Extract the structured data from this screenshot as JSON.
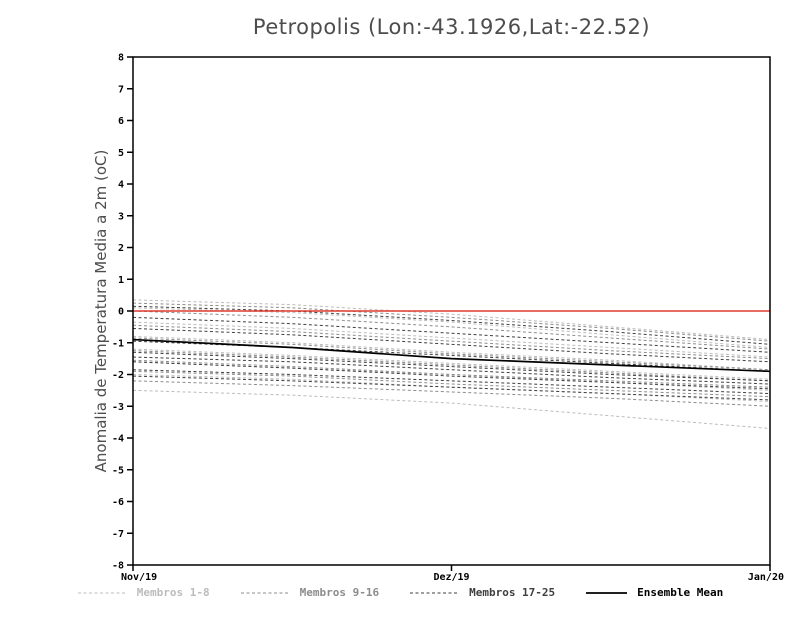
{
  "chart_data": {
    "type": "line",
    "title": "Petropolis (Lon:-43.1926,Lat:-22.52)",
    "ylabel": "Anomalia de Temperatura Media a 2m (oC)",
    "xlabel": "",
    "ylim": [
      -8,
      8
    ],
    "y_ticks": [
      8,
      7,
      6,
      5,
      4,
      3,
      2,
      1,
      0,
      -1,
      -2,
      -3,
      -4,
      -5,
      -6,
      -7,
      -8
    ],
    "x_ticks": [
      {
        "label": "Nov/19",
        "pos": 0
      },
      {
        "label": "Dez/19",
        "pos": 0.5
      },
      {
        "label": "Jan/20",
        "pos": 1
      }
    ],
    "x": [
      0,
      0.25,
      0.5,
      0.75,
      1
    ],
    "zero_line": {
      "value": 0,
      "color": "#e23b2e"
    },
    "groups": [
      {
        "name": "Membros 1-8",
        "color": "#bcbcbc",
        "dash": "3 2.5",
        "series": [
          [
            0.35,
            0.2,
            -0.1,
            -0.5,
            -0.9
          ],
          [
            0.1,
            -0.05,
            -0.35,
            -0.75,
            -1.15
          ],
          [
            -0.35,
            -0.55,
            -0.85,
            -1.15,
            -1.45
          ],
          [
            -0.8,
            -1.0,
            -1.3,
            -1.55,
            -1.85
          ],
          [
            -1.2,
            -1.4,
            -1.65,
            -1.9,
            -2.15
          ],
          [
            -1.6,
            -1.8,
            -2.0,
            -2.25,
            -2.5
          ],
          [
            -2.0,
            -2.15,
            -2.4,
            -2.6,
            -2.85
          ],
          [
            -2.5,
            -2.65,
            -2.9,
            -3.3,
            -3.7
          ]
        ]
      },
      {
        "name": "Membros 9-16",
        "color": "#8c8c8c",
        "dash": "3 2.5",
        "series": [
          [
            0.25,
            0.1,
            -0.2,
            -0.55,
            -0.95
          ],
          [
            0.0,
            -0.2,
            -0.5,
            -0.85,
            -1.2
          ],
          [
            -0.45,
            -0.65,
            -0.95,
            -1.25,
            -1.5
          ],
          [
            -0.85,
            -1.05,
            -1.35,
            -1.6,
            -1.85
          ],
          [
            -1.25,
            -1.45,
            -1.7,
            -1.95,
            -2.2
          ],
          [
            -1.55,
            -1.75,
            -2.0,
            -2.2,
            -2.4
          ],
          [
            -1.9,
            -2.05,
            -2.3,
            -2.5,
            -2.7
          ],
          [
            -2.2,
            -2.35,
            -2.55,
            -2.75,
            -3.0
          ]
        ]
      },
      {
        "name": "Membros 17-25",
        "color": "#3f3f3f",
        "dash": "3 2.5",
        "series": [
          [
            0.15,
            0.0,
            -0.3,
            -0.65,
            -1.05
          ],
          [
            -0.2,
            -0.4,
            -0.7,
            -1.0,
            -1.3
          ],
          [
            -0.55,
            -0.75,
            -1.05,
            -1.35,
            -1.6
          ],
          [
            -0.95,
            -1.15,
            -1.4,
            -1.65,
            -1.9
          ],
          [
            -1.3,
            -1.5,
            -1.75,
            -2.0,
            -2.2
          ],
          [
            -1.6,
            -1.8,
            -2.05,
            -2.25,
            -2.45
          ],
          [
            -1.85,
            -2.0,
            -2.2,
            -2.4,
            -2.6
          ],
          [
            -2.05,
            -2.2,
            -2.4,
            -2.6,
            -2.8
          ],
          [
            -1.45,
            -1.6,
            -1.85,
            -2.1,
            -2.3
          ]
        ]
      }
    ],
    "ensemble_mean": {
      "label": "Ensemble Mean",
      "color": "#000000",
      "values": [
        -0.9,
        -1.15,
        -1.5,
        -1.7,
        -1.9
      ]
    },
    "legend": [
      {
        "label": "Membros 1-8",
        "color": "#bcbcbc",
        "dash": true
      },
      {
        "label": "Membros 9-16",
        "color": "#8c8c8c",
        "dash": true
      },
      {
        "label": "Membros 17-25",
        "color": "#3f3f3f",
        "dash": true
      },
      {
        "label": "Ensemble Mean",
        "color": "#000000",
        "dash": false
      }
    ],
    "legend_position": "bottom",
    "grid": false
  }
}
